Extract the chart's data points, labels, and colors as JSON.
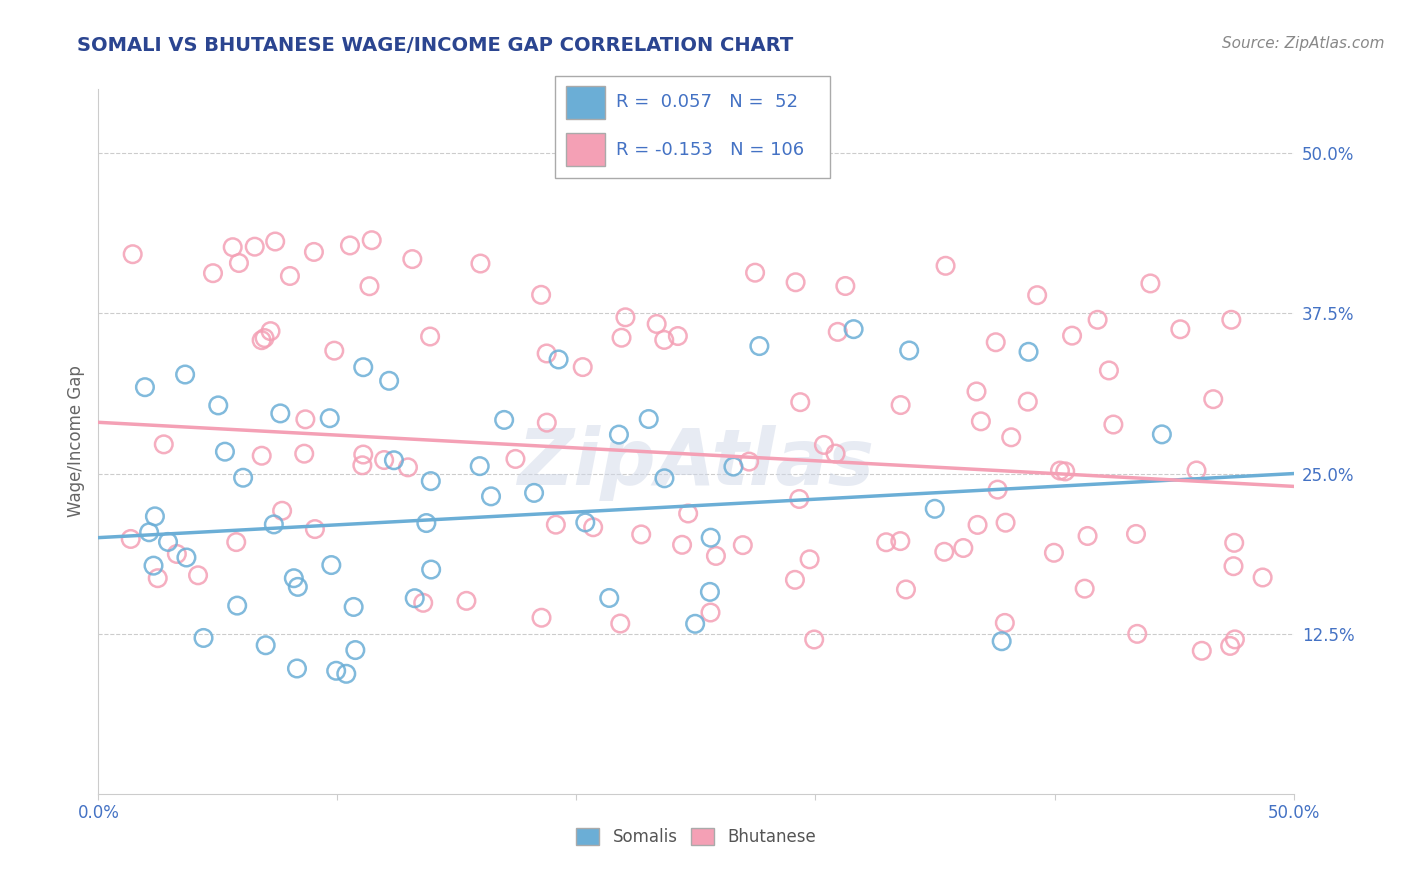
{
  "title": "SOMALI VS BHUTANESE WAGE/INCOME GAP CORRELATION CHART",
  "source_text": "Source: ZipAtlas.com",
  "ylabel": "Wage/Income Gap",
  "xmin": 0.0,
  "xmax": 0.5,
  "ymin": 0.0,
  "ymax": 0.55,
  "y_tick_labels_right": [
    "12.5%",
    "25.0%",
    "37.5%",
    "50.0%"
  ],
  "y_tick_positions_right": [
    0.125,
    0.25,
    0.375,
    0.5
  ],
  "somali_color": "#6baed6",
  "bhutanese_color": "#f4a0b5",
  "somali_R": 0.057,
  "somali_N": 52,
  "bhutanese_R": -0.153,
  "bhutanese_N": 106,
  "title_color": "#2b4590",
  "label_color": "#4472c4",
  "grid_color": "#cccccc",
  "background_color": "#ffffff",
  "som_trend_start": 0.2,
  "som_trend_end": 0.25,
  "bhu_trend_start": 0.29,
  "bhu_trend_end": 0.24
}
